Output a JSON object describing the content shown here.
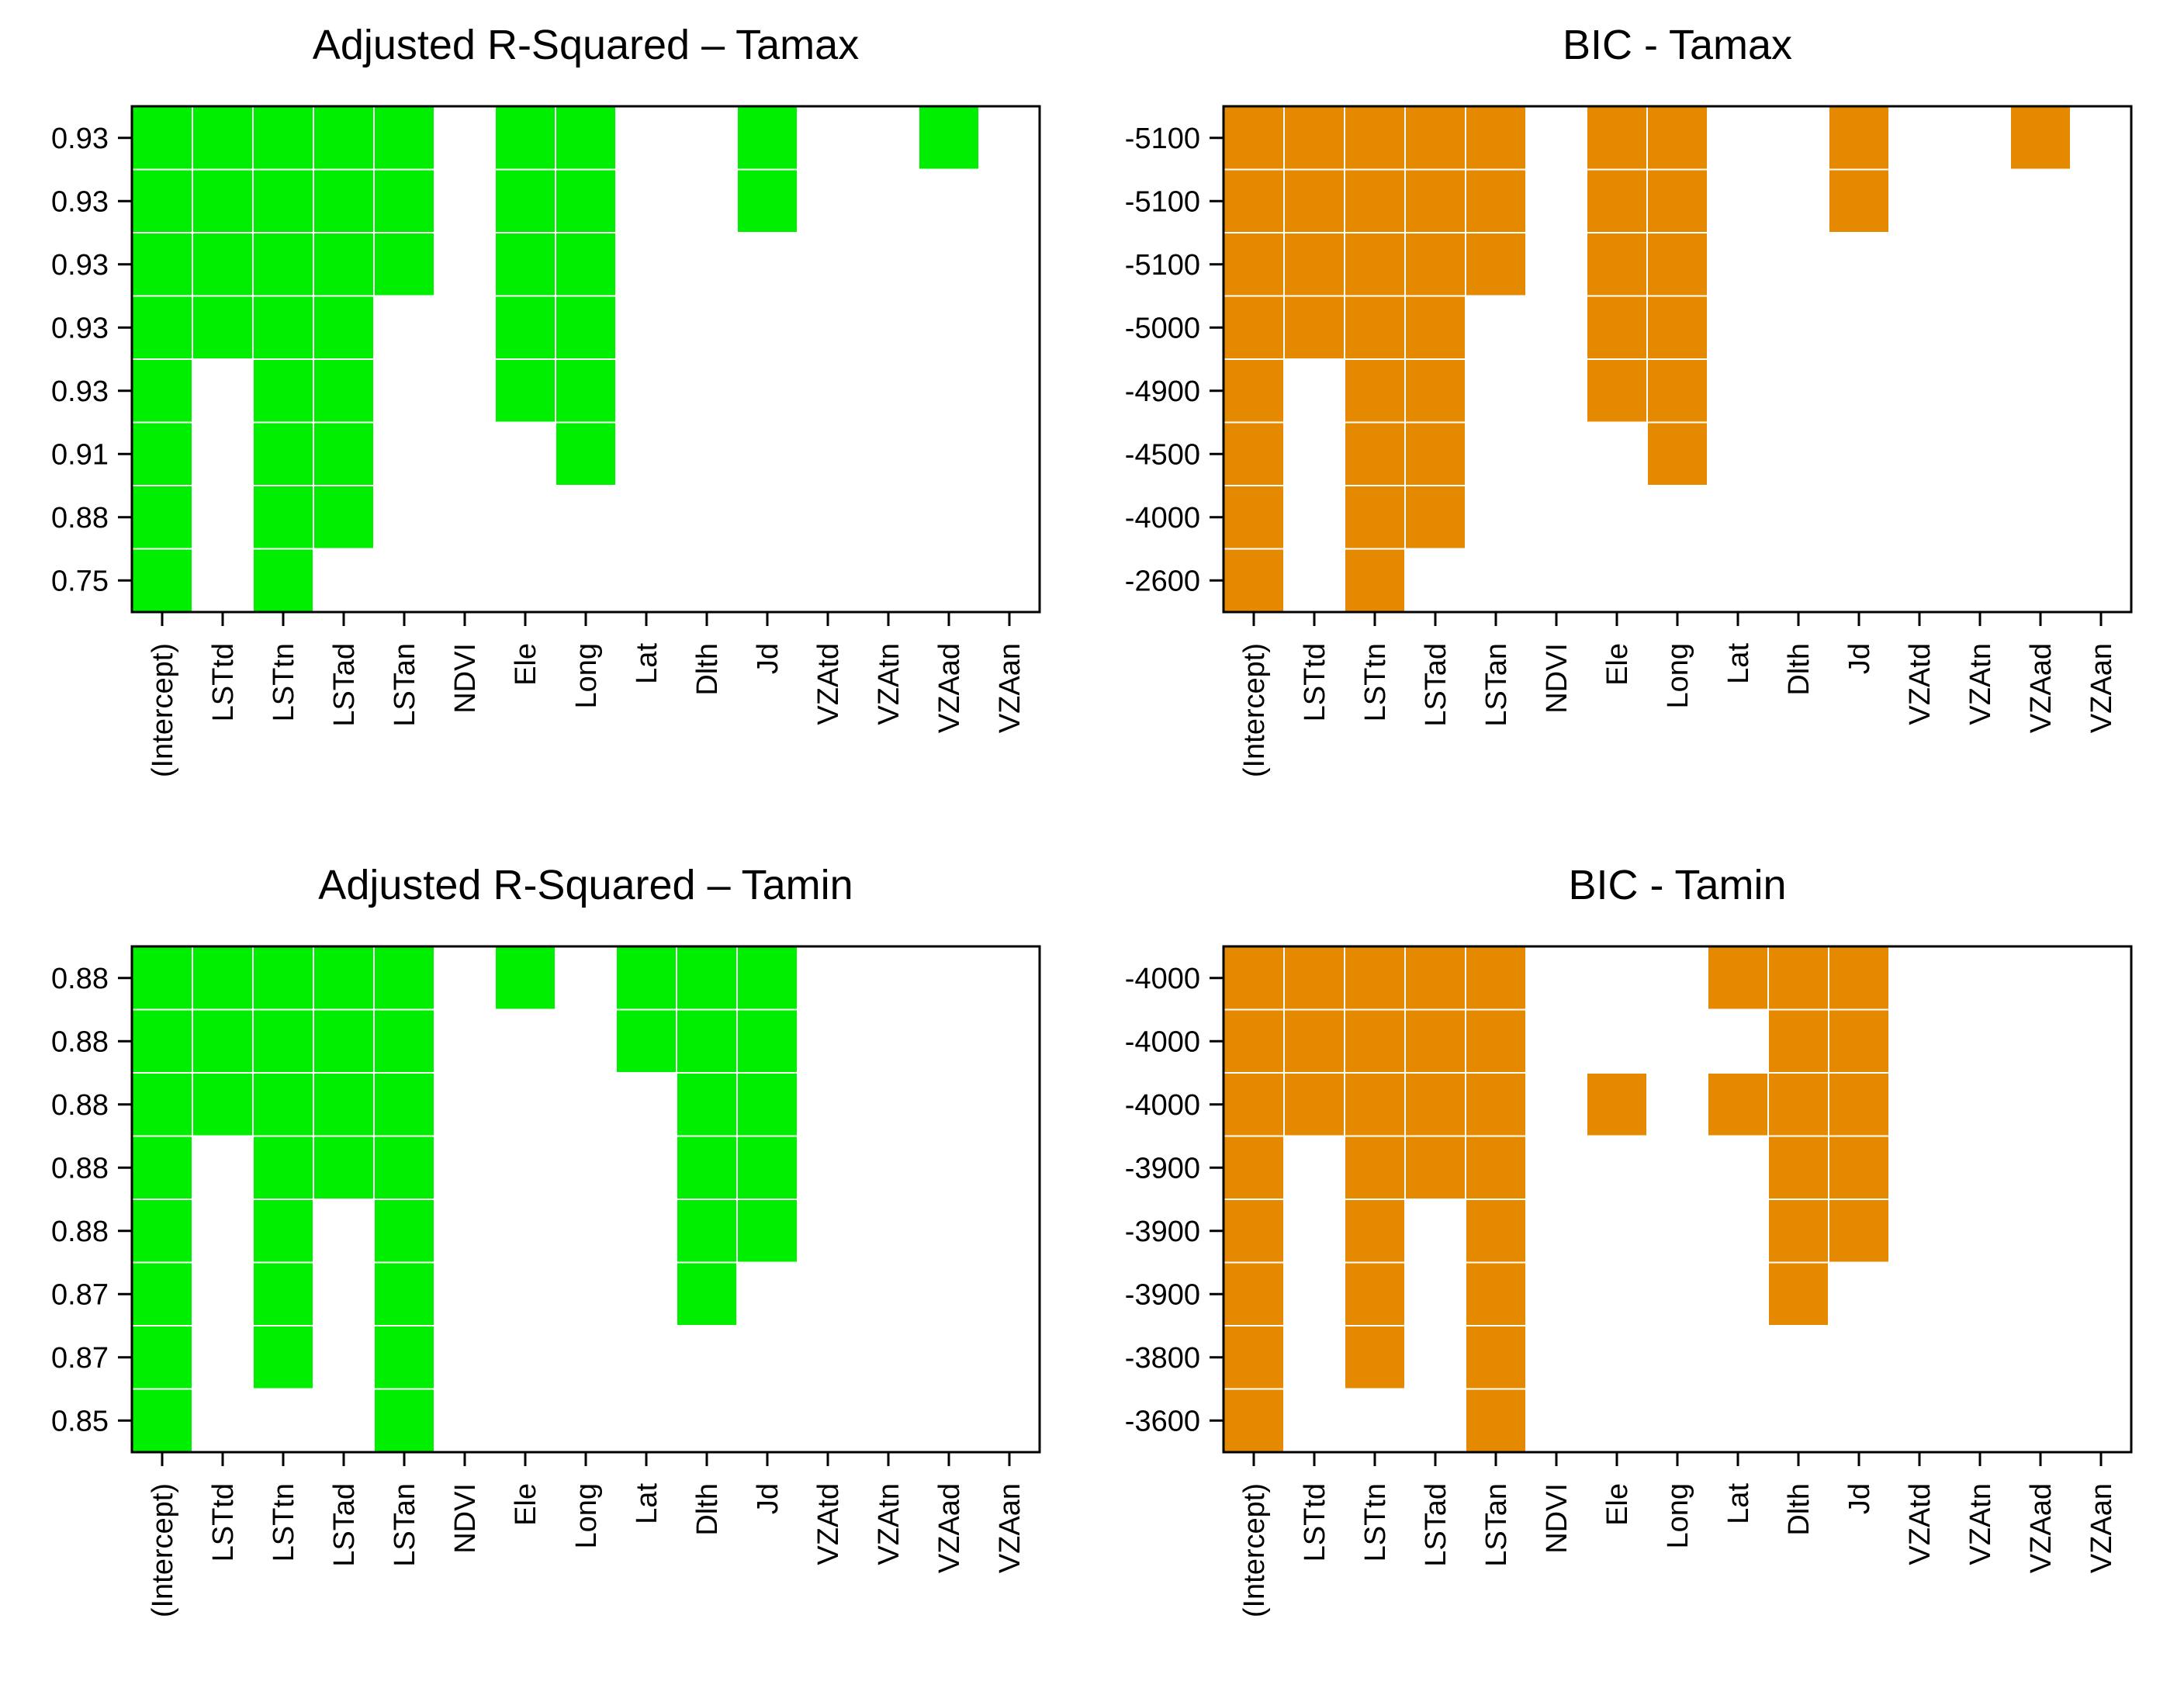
{
  "chart_data": [
    {
      "type": "heatmap",
      "title": "Adjusted R-Squared – Tamax",
      "color": "#00ee00",
      "variables": [
        "(Intercept)",
        "LSTtd",
        "LSTtn",
        "LSTad",
        "LSTan",
        "NDVI",
        "Ele",
        "Long",
        "Lat",
        "Dlth",
        "Jd",
        "VZAtd",
        "VZAtn",
        "VZAad",
        "VZAan"
      ],
      "row_labels": [
        "0.93",
        "0.93",
        "0.93",
        "0.93",
        "0.93",
        "0.91",
        "0.88",
        "0.75"
      ],
      "matrix": [
        [
          1,
          1,
          1,
          1,
          1,
          0,
          1,
          1,
          0,
          0,
          1,
          0,
          0,
          1,
          0
        ],
        [
          1,
          1,
          1,
          1,
          1,
          0,
          1,
          1,
          0,
          0,
          1,
          0,
          0,
          0,
          0
        ],
        [
          1,
          1,
          1,
          1,
          1,
          0,
          1,
          1,
          0,
          0,
          0,
          0,
          0,
          0,
          0
        ],
        [
          1,
          1,
          1,
          1,
          0,
          0,
          1,
          1,
          0,
          0,
          0,
          0,
          0,
          0,
          0
        ],
        [
          1,
          0,
          1,
          1,
          0,
          0,
          1,
          1,
          0,
          0,
          0,
          0,
          0,
          0,
          0
        ],
        [
          1,
          0,
          1,
          1,
          0,
          0,
          0,
          1,
          0,
          0,
          0,
          0,
          0,
          0,
          0
        ],
        [
          1,
          0,
          1,
          1,
          0,
          0,
          0,
          0,
          0,
          0,
          0,
          0,
          0,
          0,
          0
        ],
        [
          1,
          0,
          1,
          0,
          0,
          0,
          0,
          0,
          0,
          0,
          0,
          0,
          0,
          0,
          0
        ]
      ]
    },
    {
      "type": "heatmap",
      "title": "BIC - Tamax",
      "color": "#e58a00",
      "variables": [
        "(Intercept)",
        "LSTtd",
        "LSTtn",
        "LSTad",
        "LSTan",
        "NDVI",
        "Ele",
        "Long",
        "Lat",
        "Dlth",
        "Jd",
        "VZAtd",
        "VZAtn",
        "VZAad",
        "VZAan"
      ],
      "row_labels": [
        "-5100",
        "-5100",
        "-5100",
        "-5000",
        "-4900",
        "-4500",
        "-4000",
        "-2600"
      ],
      "matrix": [
        [
          1,
          1,
          1,
          1,
          1,
          0,
          1,
          1,
          0,
          0,
          1,
          0,
          0,
          1,
          0
        ],
        [
          1,
          1,
          1,
          1,
          1,
          0,
          1,
          1,
          0,
          0,
          1,
          0,
          0,
          0,
          0
        ],
        [
          1,
          1,
          1,
          1,
          1,
          0,
          1,
          1,
          0,
          0,
          0,
          0,
          0,
          0,
          0
        ],
        [
          1,
          1,
          1,
          1,
          0,
          0,
          1,
          1,
          0,
          0,
          0,
          0,
          0,
          0,
          0
        ],
        [
          1,
          0,
          1,
          1,
          0,
          0,
          1,
          1,
          0,
          0,
          0,
          0,
          0,
          0,
          0
        ],
        [
          1,
          0,
          1,
          1,
          0,
          0,
          0,
          1,
          0,
          0,
          0,
          0,
          0,
          0,
          0
        ],
        [
          1,
          0,
          1,
          1,
          0,
          0,
          0,
          0,
          0,
          0,
          0,
          0,
          0,
          0,
          0
        ],
        [
          1,
          0,
          1,
          0,
          0,
          0,
          0,
          0,
          0,
          0,
          0,
          0,
          0,
          0,
          0
        ]
      ]
    },
    {
      "type": "heatmap",
      "title": "Adjusted R-Squared – Tamin",
      "color": "#00ee00",
      "variables": [
        "(Intercept)",
        "LSTtd",
        "LSTtn",
        "LSTad",
        "LSTan",
        "NDVI",
        "Ele",
        "Long",
        "Lat",
        "Dlth",
        "Jd",
        "VZAtd",
        "VZAtn",
        "VZAad",
        "VZAan"
      ],
      "row_labels": [
        "0.88",
        "0.88",
        "0.88",
        "0.88",
        "0.88",
        "0.87",
        "0.87",
        "0.85"
      ],
      "matrix": [
        [
          1,
          1,
          1,
          1,
          1,
          0,
          1,
          0,
          1,
          1,
          1,
          0,
          0,
          0,
          0
        ],
        [
          1,
          1,
          1,
          1,
          1,
          0,
          0,
          0,
          1,
          1,
          1,
          0,
          0,
          0,
          0
        ],
        [
          1,
          1,
          1,
          1,
          1,
          0,
          0,
          0,
          0,
          1,
          1,
          0,
          0,
          0,
          0
        ],
        [
          1,
          0,
          1,
          1,
          1,
          0,
          0,
          0,
          0,
          1,
          1,
          0,
          0,
          0,
          0
        ],
        [
          1,
          0,
          1,
          0,
          1,
          0,
          0,
          0,
          0,
          1,
          1,
          0,
          0,
          0,
          0
        ],
        [
          1,
          0,
          1,
          0,
          1,
          0,
          0,
          0,
          0,
          1,
          0,
          0,
          0,
          0,
          0
        ],
        [
          1,
          0,
          1,
          0,
          1,
          0,
          0,
          0,
          0,
          0,
          0,
          0,
          0,
          0,
          0
        ],
        [
          1,
          0,
          0,
          0,
          1,
          0,
          0,
          0,
          0,
          0,
          0,
          0,
          0,
          0,
          0
        ]
      ]
    },
    {
      "type": "heatmap",
      "title": "BIC - Tamin",
      "color": "#e58a00",
      "variables": [
        "(Intercept)",
        "LSTtd",
        "LSTtn",
        "LSTad",
        "LSTan",
        "NDVI",
        "Ele",
        "Long",
        "Lat",
        "Dlth",
        "Jd",
        "VZAtd",
        "VZAtn",
        "VZAad",
        "VZAan"
      ],
      "row_labels": [
        "-4000",
        "-4000",
        "-4000",
        "-3900",
        "-3900",
        "-3900",
        "-3800",
        "-3600"
      ],
      "matrix": [
        [
          1,
          1,
          1,
          1,
          1,
          0,
          0,
          0,
          1,
          1,
          1,
          0,
          0,
          0,
          0
        ],
        [
          1,
          1,
          1,
          1,
          1,
          0,
          0,
          0,
          0,
          1,
          1,
          0,
          0,
          0,
          0
        ],
        [
          1,
          1,
          1,
          1,
          1,
          0,
          1,
          0,
          1,
          1,
          1,
          0,
          0,
          0,
          0
        ],
        [
          1,
          0,
          1,
          1,
          1,
          0,
          0,
          0,
          0,
          1,
          1,
          0,
          0,
          0,
          0
        ],
        [
          1,
          0,
          1,
          0,
          1,
          0,
          0,
          0,
          0,
          1,
          1,
          0,
          0,
          0,
          0
        ],
        [
          1,
          0,
          1,
          0,
          1,
          0,
          0,
          0,
          0,
          1,
          0,
          0,
          0,
          0,
          0
        ],
        [
          1,
          0,
          1,
          0,
          1,
          0,
          0,
          0,
          0,
          0,
          0,
          0,
          0,
          0,
          0
        ],
        [
          1,
          0,
          0,
          0,
          1,
          0,
          0,
          0,
          0,
          0,
          0,
          0,
          0,
          0,
          0
        ]
      ]
    }
  ]
}
